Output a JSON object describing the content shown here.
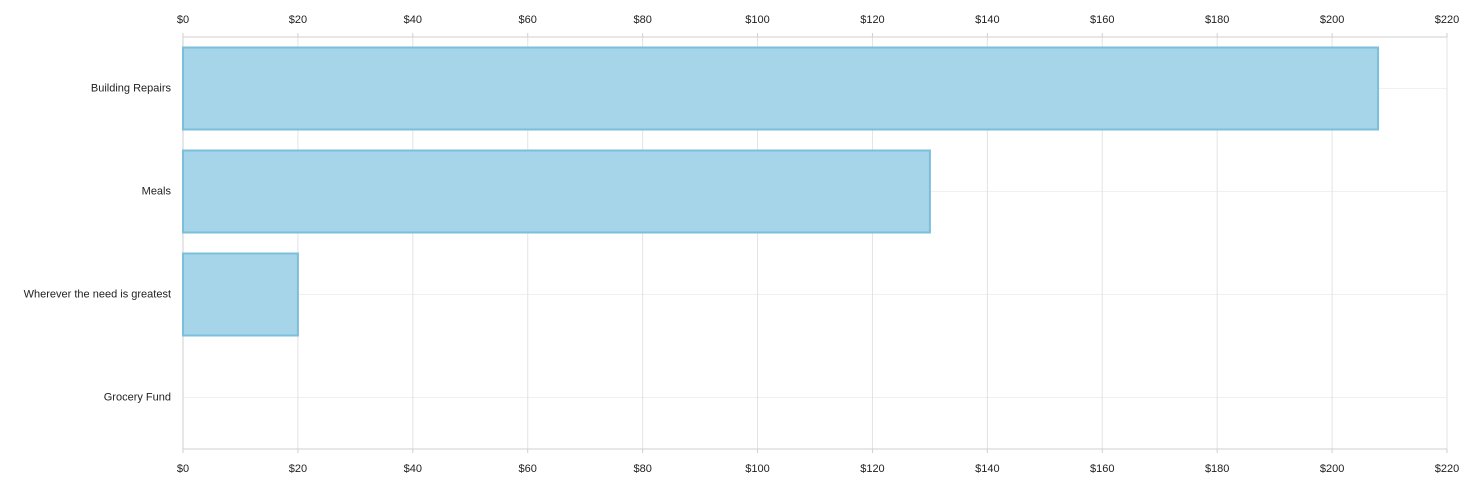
{
  "chart_data": {
    "type": "hbar",
    "categories": [
      "Building Repairs",
      "Meals",
      "Wherever the need is greatest",
      "Grocery Fund"
    ],
    "values": [
      208,
      130,
      20,
      0
    ],
    "color": "#a6d4e9",
    "edge_color": "#7bbfdc",
    "xlim": [
      0,
      220
    ],
    "xticks": [
      {
        "value": 0,
        "label": "$0"
      },
      {
        "value": 20,
        "label": "$20"
      },
      {
        "value": 40,
        "label": "$40"
      },
      {
        "value": 60,
        "label": "$60"
      },
      {
        "value": 80,
        "label": "$80"
      },
      {
        "value": 100,
        "label": "$100"
      },
      {
        "value": 120,
        "label": "$120"
      },
      {
        "value": 140,
        "label": "$140"
      },
      {
        "value": 160,
        "label": "$160"
      },
      {
        "value": 180,
        "label": "$180"
      },
      {
        "value": 200,
        "label": "$200"
      },
      {
        "value": 220,
        "label": "$220"
      }
    ],
    "grid": true
  }
}
